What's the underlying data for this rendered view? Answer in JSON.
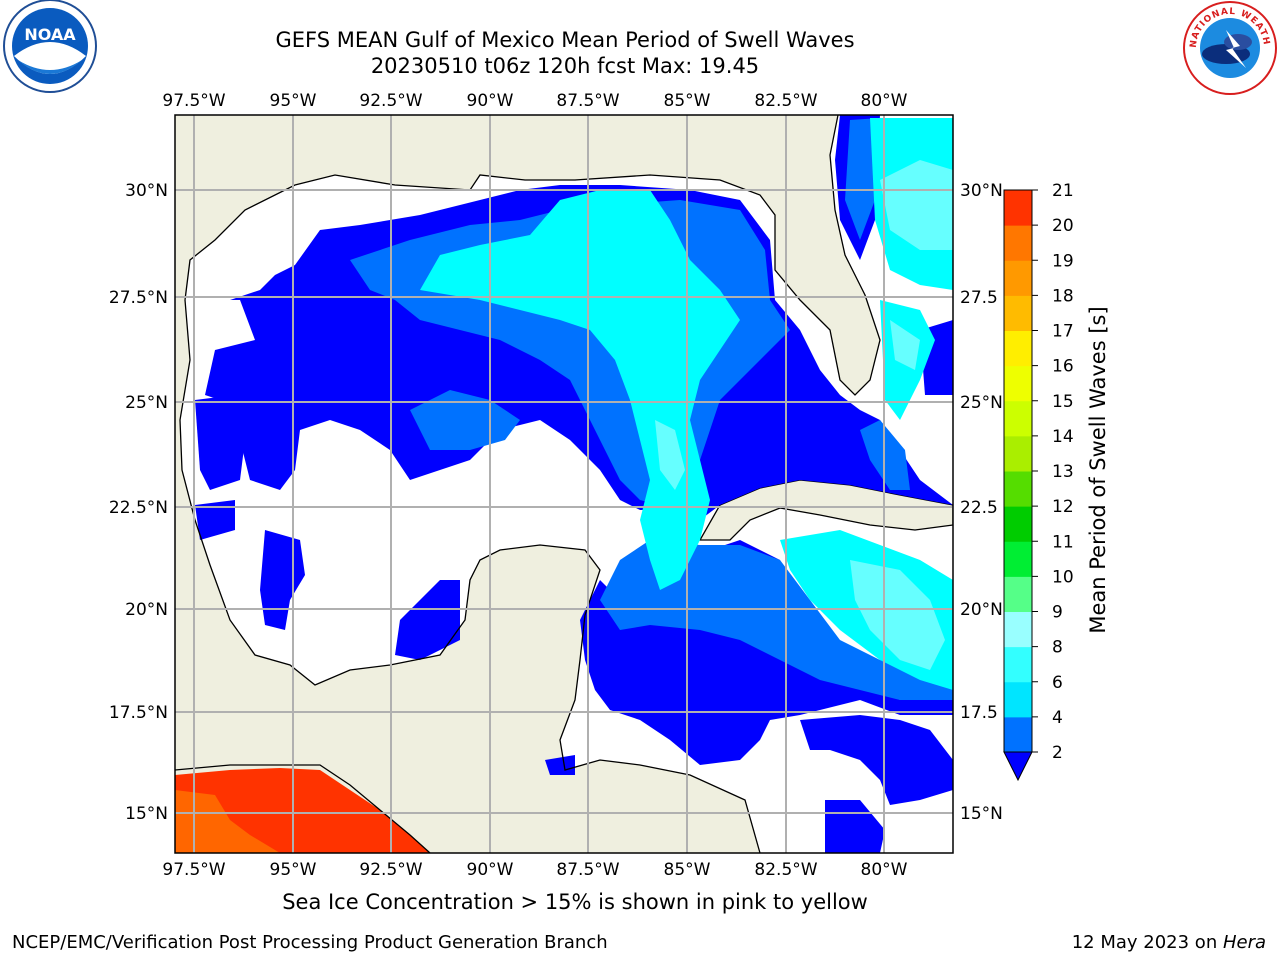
{
  "title_line1": "GEFS MEAN Gulf of Mexico Mean Period of Swell Waves",
  "title_line2": "20230510 t06z 120h fcst   Max: 19.45",
  "footer_note": "Sea Ice Concentration > 15% is shown in pink to yellow",
  "credit": "NCEP/EMC/Verification Post Processing Product Generation Branch",
  "date_prefix": "12 May 2023 on ",
  "date_host": "Hera",
  "logos": {
    "noaa_text": "NOAA",
    "nws_text": "NATIONAL WEATHER SERVICE"
  },
  "map": {
    "lon_labels": [
      "97.5°W",
      "95°W",
      "92.5°W",
      "90°W",
      "87.5°W",
      "85°W",
      "82.5°W",
      "80°W"
    ],
    "lat_labels_left": [
      "30°N",
      "27.5°N",
      "25°N",
      "22.5°N",
      "20°N",
      "17.5°N",
      "15°N"
    ],
    "lat_labels_right": [
      "30°N",
      "27.5",
      "25°N",
      "22.5",
      "20°N",
      "17.5",
      "15°N"
    ],
    "colors": {
      "land": "#efefdf",
      "ocean_none": "#ffffff",
      "grid": "#b0b0b0"
    }
  },
  "colorbar": {
    "label": "Mean Period of Swell Waves [s]",
    "ticks": [
      "2",
      "4",
      "6",
      "8",
      "9",
      "10",
      "11",
      "12",
      "13",
      "14",
      "15",
      "16",
      "17",
      "18",
      "19",
      "20",
      "21"
    ],
    "colors": [
      "#0072ff",
      "#00e5ff",
      "#33ffff",
      "#99ffff",
      "#55ff88",
      "#00ee33",
      "#00cc00",
      "#55dd00",
      "#aaee00",
      "#ccff00",
      "#eeff00",
      "#ffee00",
      "#ffbb00",
      "#ff9900",
      "#ff7700",
      "#ff3300",
      "#ff0000"
    ],
    "under_color": "#0000ff"
  },
  "field_colors": {
    "c2": "#0000ff",
    "c3": "#0072ff",
    "c4": "#00ffff",
    "c5": "#66ffff",
    "c19": "#ff3300",
    "c18": "#ff6600"
  }
}
